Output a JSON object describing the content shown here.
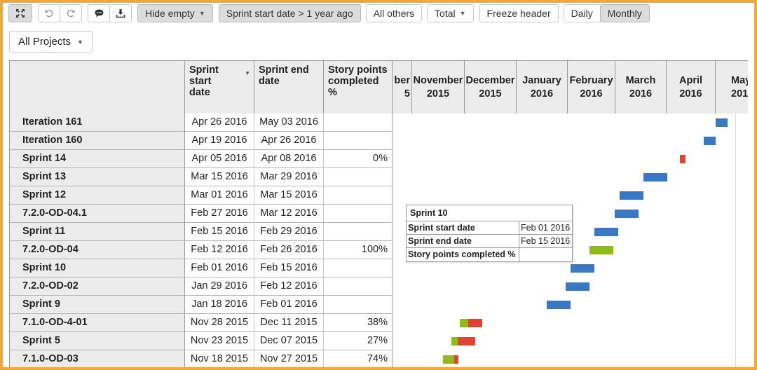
{
  "toolbar": {
    "hide_empty": "Hide empty",
    "sprint_filter": "Sprint start date > 1 year ago",
    "all_others": "All others",
    "total": "Total",
    "freeze_header": "Freeze header",
    "daily": "Daily",
    "monthly": "Monthly",
    "icons": [
      "expand-icon",
      "undo-icon",
      "redo-icon",
      "comment-icon",
      "download-icon"
    ]
  },
  "project_selector": "All Projects",
  "columns": {
    "sprint_start": "Sprint start date",
    "sprint_end": "Sprint end date",
    "story_points": "Story points completed %"
  },
  "months": [
    {
      "month": "ber",
      "year": "5"
    },
    {
      "month": "November",
      "year": "2015"
    },
    {
      "month": "December",
      "year": "2015"
    },
    {
      "month": "January",
      "year": "2016"
    },
    {
      "month": "February",
      "year": "2016"
    },
    {
      "month": "March",
      "year": "2016"
    },
    {
      "month": "April",
      "year": "2016"
    },
    {
      "month": "May",
      "year": "201"
    }
  ],
  "rows": [
    {
      "name": "Iteration 161",
      "start": "Apr 26 2016",
      "end": "May 03 2016",
      "sp": ""
    },
    {
      "name": "Iteration 160",
      "start": "Apr 19 2016",
      "end": "Apr 26 2016",
      "sp": ""
    },
    {
      "name": "Sprint 14",
      "start": "Apr 05 2016",
      "end": "Apr 08 2016",
      "sp": "0%"
    },
    {
      "name": "Sprint 13",
      "start": "Mar 15 2016",
      "end": "Mar 29 2016",
      "sp": ""
    },
    {
      "name": "Sprint 12",
      "start": "Mar 01 2016",
      "end": "Mar 15 2016",
      "sp": ""
    },
    {
      "name": "7.2.0-OD-04.1",
      "start": "Feb 27 2016",
      "end": "Mar 12 2016",
      "sp": ""
    },
    {
      "name": "Sprint 11",
      "start": "Feb 15 2016",
      "end": "Feb 29 2016",
      "sp": ""
    },
    {
      "name": "7.2.0-OD-04",
      "start": "Feb 12 2016",
      "end": "Feb 26 2016",
      "sp": "100%"
    },
    {
      "name": "Sprint 10",
      "start": "Feb 01 2016",
      "end": "Feb 15 2016",
      "sp": ""
    },
    {
      "name": "7.2.0-OD-02",
      "start": "Jan 29 2016",
      "end": "Feb 12 2016",
      "sp": ""
    },
    {
      "name": "Sprint 9",
      "start": "Jan 18 2016",
      "end": "Feb 01 2016",
      "sp": ""
    },
    {
      "name": "7.1.0-OD-4-01",
      "start": "Nov 28 2015",
      "end": "Dec 11 2015",
      "sp": "38%"
    },
    {
      "name": "Sprint 5",
      "start": "Nov 23 2015",
      "end": "Dec 07 2015",
      "sp": "27%"
    },
    {
      "name": "7.1.0-OD-03",
      "start": "Nov 18 2015",
      "end": "Nov 27 2015",
      "sp": "74%"
    }
  ],
  "colors": {
    "bar_default": "#3a78c3",
    "bar_done": "#8fba1c",
    "bar_remaining": "#dd4433"
  },
  "tooltip": {
    "title": "Sprint 10",
    "rows": [
      {
        "key": "Sprint start date",
        "value": "Feb 01 2016"
      },
      {
        "key": "Sprint end date",
        "value": "Feb 15 2016"
      },
      {
        "key": "Story points completed %",
        "value": ""
      }
    ]
  }
}
